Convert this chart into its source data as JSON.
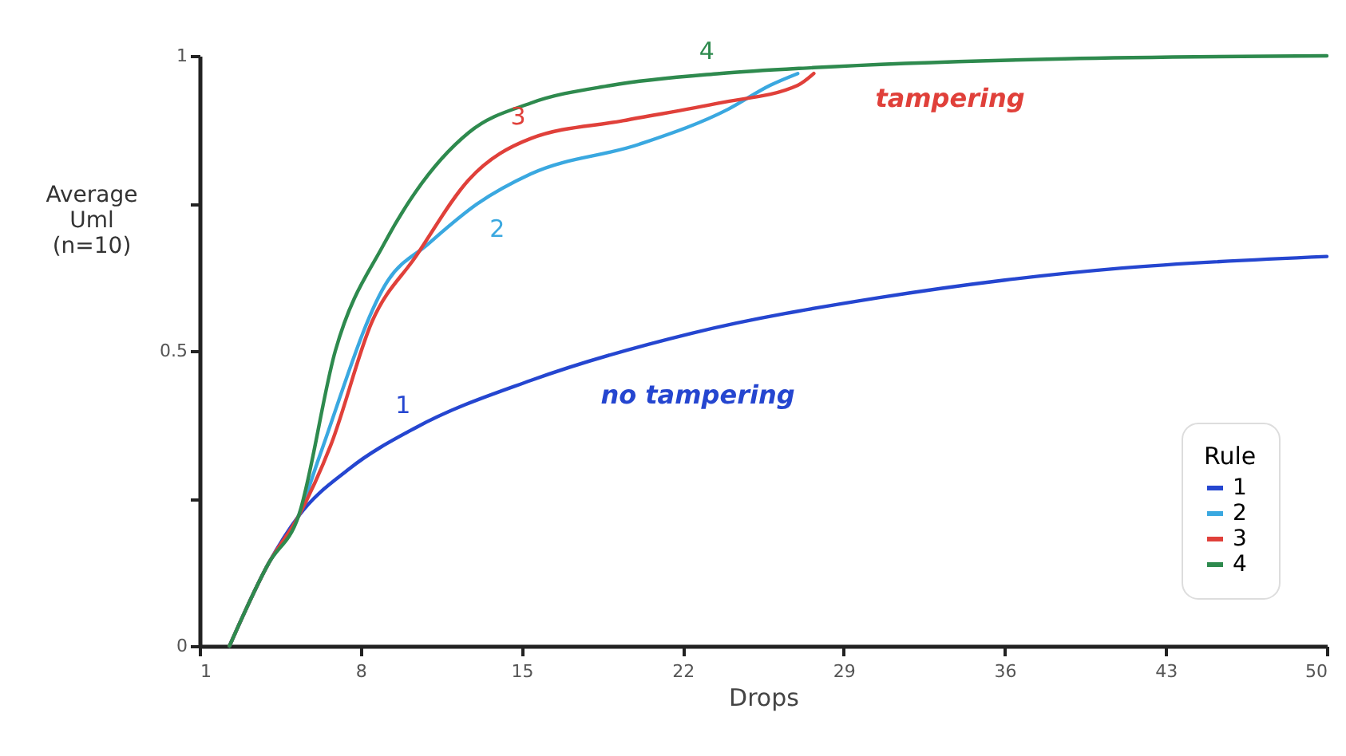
{
  "chart_data": {
    "type": "line",
    "xlabel": "Drops",
    "ylabel": "Average Uml (n=10)",
    "legend_title": "Rule",
    "xlim": [
      1,
      50
    ],
    "xticks": [
      1,
      8,
      15,
      22,
      29,
      36,
      43,
      50
    ],
    "ylim": [
      0,
      1
    ],
    "yticks": [
      0,
      {
        "value": 0.25,
        "label": null
      },
      0.5,
      {
        "value": 0.75,
        "label": null
      },
      1
    ],
    "grid": false,
    "legend": "bottom right",
    "marker": "none",
    "line_style": "solid",
    "annotations": [
      "no tampering",
      "tampering"
    ],
    "series": [
      {
        "name": "1",
        "color": "#2546d0",
        "x": [
          2.3,
          4,
          5.3,
          7.5,
          10.4,
          15.4,
          22.4,
          30.5,
          36,
          41,
          50
        ],
        "values": [
          0,
          0.14,
          0.22,
          0.3,
          0.37,
          0.45,
          0.53,
          0.59,
          0.62,
          0.64,
          0.66
        ]
      },
      {
        "name": "2",
        "color": "#3aa8e0",
        "x": [
          2.3,
          4,
          5.3,
          6.2,
          9.2,
          10.9,
          13.1,
          15.4,
          20.1,
          24,
          25.8,
          27
        ],
        "values": [
          0,
          0.14,
          0.22,
          0.32,
          0.62,
          0.68,
          0.75,
          0.8,
          0.85,
          0.91,
          0.95,
          0.97
        ]
      },
      {
        "name": "3",
        "color": "#e0403a",
        "x": [
          2.3,
          4,
          5.3,
          6.7,
          8.5,
          10.4,
          12.7,
          15.4,
          19.4,
          23.6,
          27,
          27.7
        ],
        "values": [
          0,
          0.14,
          0.22,
          0.34,
          0.55,
          0.66,
          0.79,
          0.86,
          0.89,
          0.92,
          0.95,
          0.97
        ]
      },
      {
        "name": "4",
        "color": "#2e8a4e",
        "x": [
          2.3,
          4,
          5.3,
          6.9,
          9,
          10.4,
          12.7,
          15.4,
          18.9,
          23.6,
          27.7,
          38.6,
          50
        ],
        "values": [
          0,
          0.14,
          0.22,
          0.5,
          0.68,
          0.77,
          0.87,
          0.92,
          0.95,
          0.97,
          0.98,
          0.995,
          1
        ]
      }
    ]
  }
}
